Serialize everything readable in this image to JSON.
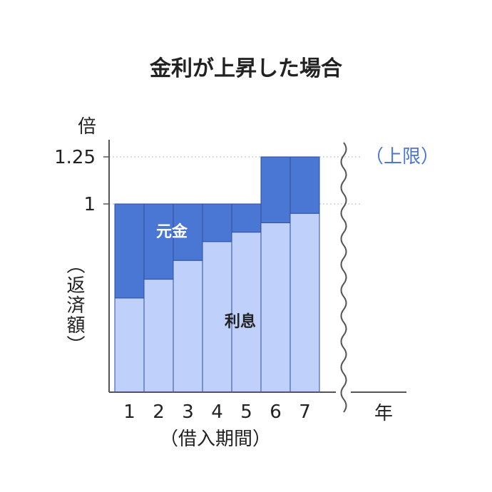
{
  "chart_data": {
    "type": "bar",
    "title": "金利が上昇した場合",
    "y_unit": "倍",
    "y_axis_label": "（返済額）",
    "x_axis_label": "（借入期間）",
    "x_unit": "年",
    "categories": [
      "1",
      "2",
      "3",
      "4",
      "5",
      "6",
      "7"
    ],
    "y_ticks": [
      {
        "value": 1.25,
        "label": "1.25"
      },
      {
        "value": 1,
        "label": "1"
      }
    ],
    "annotation": "（上限）",
    "ylim": [
      0,
      1.25
    ],
    "series": [
      {
        "name": "利息",
        "values": [
          0.5,
          0.6,
          0.7,
          0.8,
          0.85,
          0.9,
          0.95
        ]
      },
      {
        "name": "元金",
        "values": [
          0.5,
          0.4,
          0.3,
          0.2,
          0.15,
          0.35,
          0.3
        ]
      }
    ],
    "colors": {
      "interest": "#bfd0fb",
      "principal": "#4a76d4",
      "edge": "#2f4f9a",
      "annotation": "#4a76d4",
      "grid": "#bbbbbb",
      "axis": "#555555"
    },
    "grid": "dotted reference lines at 1 and 1.25"
  }
}
